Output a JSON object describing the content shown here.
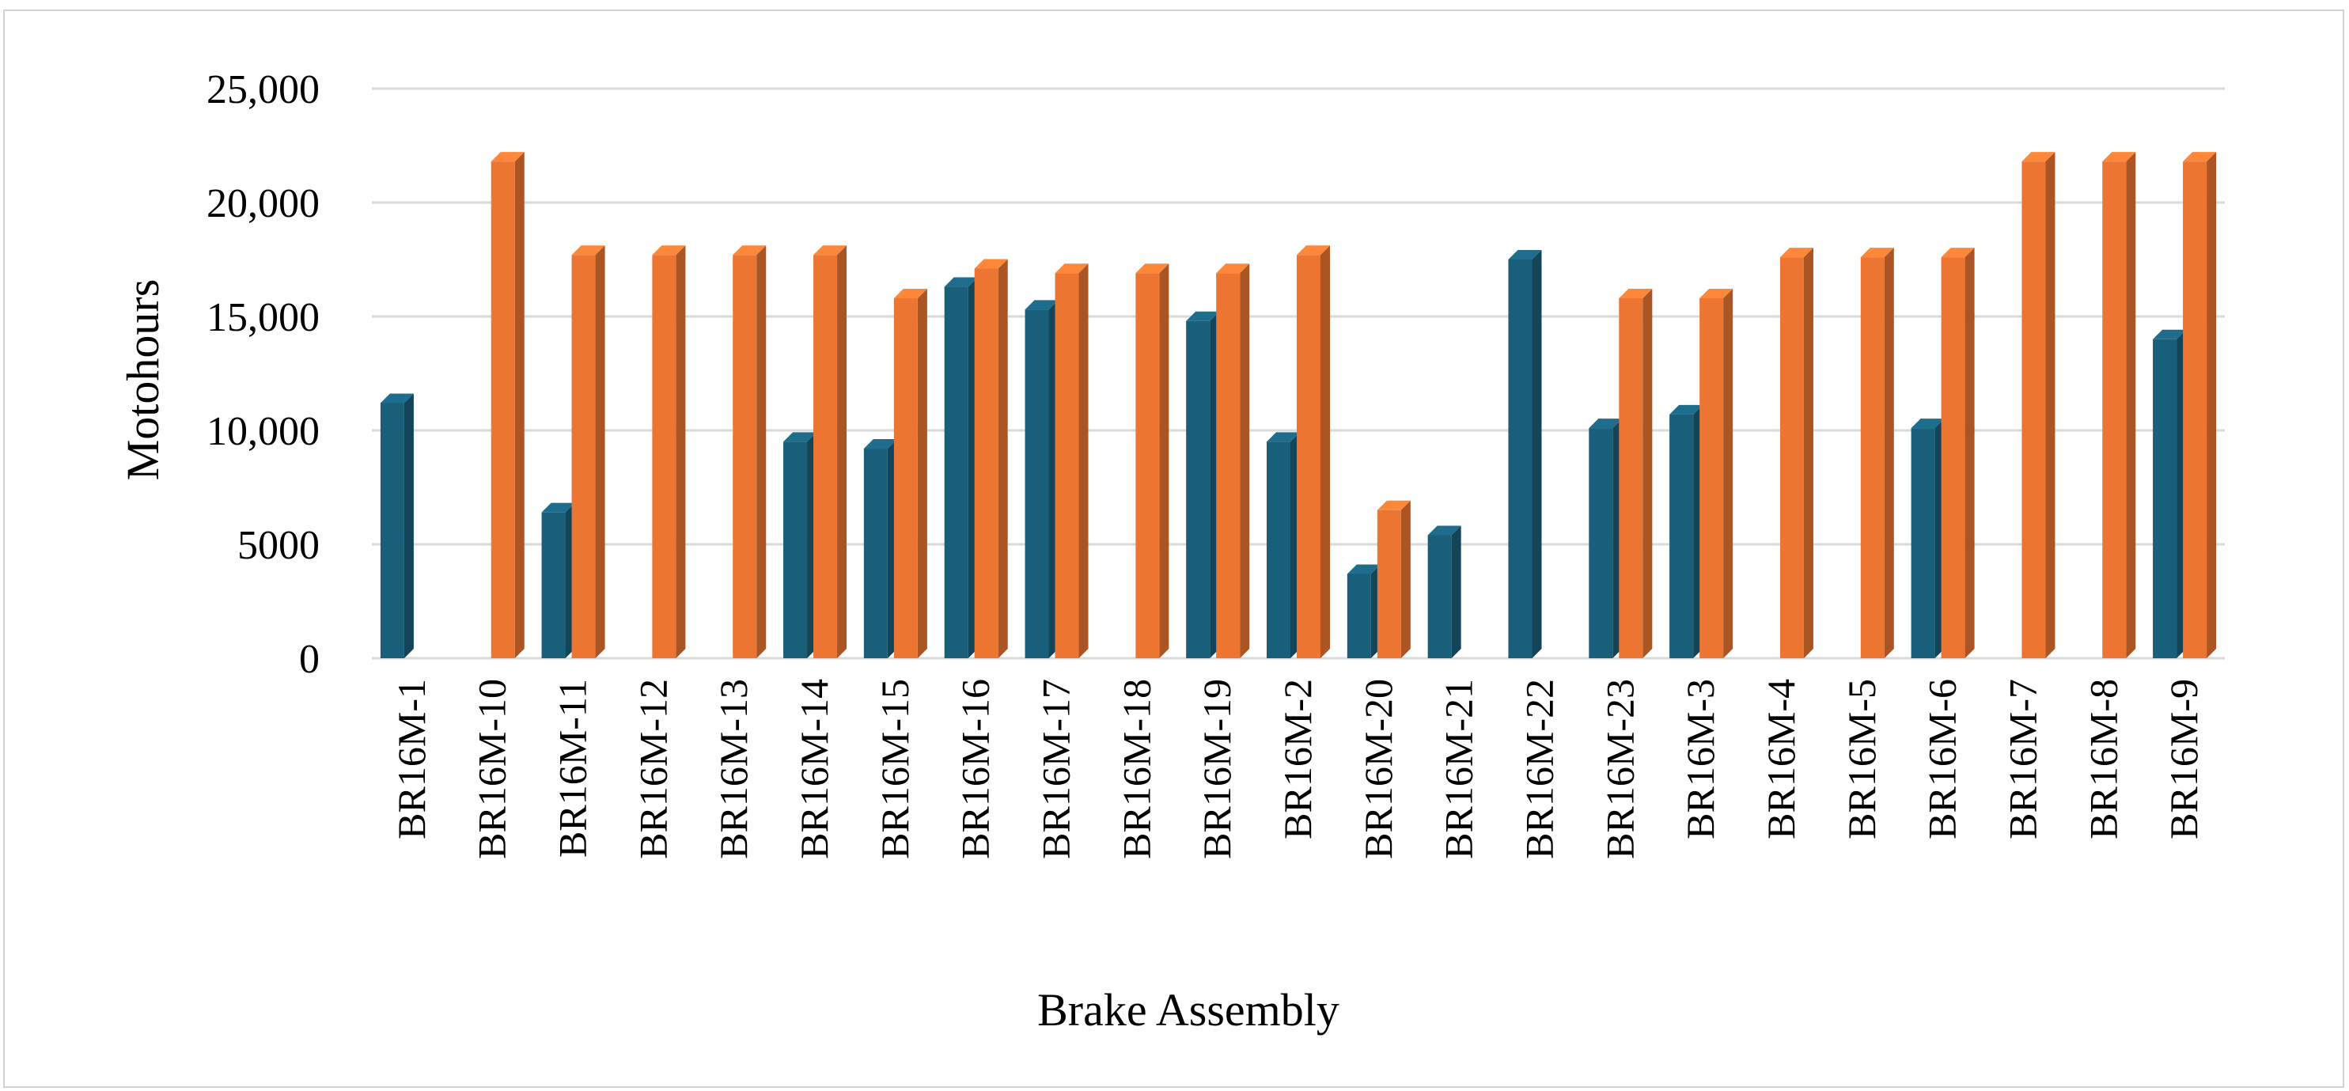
{
  "chart_data": {
    "type": "bar",
    "title": "",
    "xlabel": "Brake Assembly",
    "ylabel": "Motohours",
    "ylim": [
      0,
      25000
    ],
    "y_ticks": [
      {
        "value": 0,
        "label": "0"
      },
      {
        "value": 5000,
        "label": "5000"
      },
      {
        "value": 10000,
        "label": "10,000"
      },
      {
        "value": 15000,
        "label": "15,000"
      },
      {
        "value": 20000,
        "label": "20,000"
      },
      {
        "value": 25000,
        "label": "25,000"
      }
    ],
    "grid": "horizontal",
    "legend": "none",
    "categories": [
      "BR16M-1",
      "BR16M-10",
      "BR16M-11",
      "BR16M-12",
      "BR16M-13",
      "BR16M-14",
      "BR16M-15",
      "BR16M-16",
      "BR16M-17",
      "BR16M-18",
      "BR16M-19",
      "BR16M-2",
      "BR16M-20",
      "BR16M-21",
      "BR16M-22",
      "BR16M-23",
      "BR16M-3",
      "BR16M-4",
      "BR16M-5",
      "BR16M-6",
      "BR16M-7",
      "BR16M-8",
      "BR16M-9"
    ],
    "series": [
      {
        "color": "#1a5f7a",
        "values": [
          11200,
          0,
          6400,
          0,
          0,
          9500,
          9200,
          16300,
          15300,
          0,
          14800,
          9500,
          3700,
          5400,
          17500,
          10100,
          10700,
          0,
          0,
          10100,
          0,
          0,
          14000
        ]
      },
      {
        "color": "#ed7532",
        "values": [
          0,
          21800,
          17700,
          17700,
          17700,
          17700,
          15800,
          17100,
          16900,
          16900,
          16900,
          17700,
          6500,
          0,
          0,
          15800,
          15800,
          17600,
          17600,
          17600,
          21800,
          21800,
          21800
        ]
      }
    ]
  }
}
